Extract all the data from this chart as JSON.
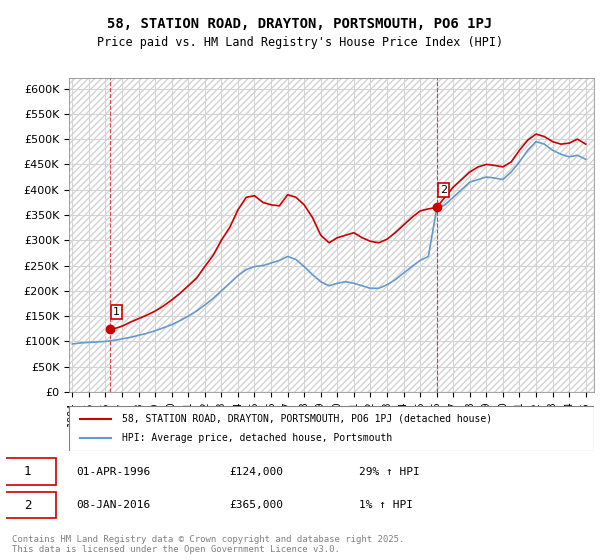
{
  "title": "58, STATION ROAD, DRAYTON, PORTSMOUTH, PO6 1PJ",
  "subtitle": "Price paid vs. HM Land Registry's House Price Index (HPI)",
  "legend_entry1": "58, STATION ROAD, DRAYTON, PORTSMOUTH, PO6 1PJ (detached house)",
  "legend_entry2": "HPI: Average price, detached house, Portsmouth",
  "annotation1_label": "1",
  "annotation1_date": "01-APR-1996",
  "annotation1_price": "£124,000",
  "annotation1_hpi": "29% ↑ HPI",
  "annotation2_label": "2",
  "annotation2_date": "08-JAN-2016",
  "annotation2_price": "£365,000",
  "annotation2_hpi": "1% ↑ HPI",
  "footnote": "Contains HM Land Registry data © Crown copyright and database right 2025.\nThis data is licensed under the Open Government Licence v3.0.",
  "red_color": "#cc0000",
  "blue_color": "#6699cc",
  "marker_box_color": "#cc0000",
  "ylim": [
    0,
    620000
  ],
  "yticks": [
    0,
    50000,
    100000,
    150000,
    200000,
    250000,
    300000,
    350000,
    400000,
    450000,
    500000,
    550000,
    600000
  ],
  "ytick_labels": [
    "£0",
    "£50K",
    "£100K",
    "£150K",
    "£200K",
    "£250K",
    "£300K",
    "£350K",
    "£400K",
    "£450K",
    "£500K",
    "£550K",
    "£600K"
  ],
  "red_years": [
    1996.25,
    1996.5,
    1997,
    1997.5,
    1998,
    1998.5,
    1999,
    1999.5,
    2000,
    2000.5,
    2001,
    2001.5,
    2002,
    2002.5,
    2003,
    2003.5,
    2004,
    2004.5,
    2005,
    2005.5,
    2006,
    2006.5,
    2007,
    2007.5,
    2008,
    2008.5,
    2009,
    2009.5,
    2010,
    2010.5,
    2011,
    2011.5,
    2012,
    2012.5,
    2013,
    2013.5,
    2014,
    2014.5,
    2015,
    2015.5,
    2016.0,
    2016.5,
    2017,
    2017.5,
    2018,
    2018.5,
    2019,
    2019.5,
    2020,
    2020.5,
    2021,
    2021.5,
    2022,
    2022.5,
    2023,
    2023.5,
    2024,
    2024.5,
    2025
  ],
  "red_values": [
    124000,
    125000,
    130000,
    138000,
    145000,
    152000,
    160000,
    170000,
    182000,
    195000,
    210000,
    225000,
    248000,
    270000,
    300000,
    325000,
    360000,
    385000,
    388000,
    375000,
    370000,
    368000,
    390000,
    385000,
    370000,
    345000,
    310000,
    295000,
    305000,
    310000,
    315000,
    305000,
    298000,
    295000,
    302000,
    315000,
    330000,
    345000,
    358000,
    362000,
    365000,
    385000,
    405000,
    420000,
    435000,
    445000,
    450000,
    448000,
    445000,
    455000,
    478000,
    498000,
    510000,
    505000,
    495000,
    490000,
    492000,
    500000,
    490000
  ],
  "blue_years": [
    1994,
    1994.5,
    1995,
    1995.5,
    1996,
    1996.5,
    1997,
    1997.5,
    1998,
    1998.5,
    1999,
    1999.5,
    2000,
    2000.5,
    2001,
    2001.5,
    2002,
    2002.5,
    2003,
    2003.5,
    2004,
    2004.5,
    2005,
    2005.5,
    2006,
    2006.5,
    2007,
    2007.5,
    2008,
    2008.5,
    2009,
    2009.5,
    2010,
    2010.5,
    2011,
    2011.5,
    2012,
    2012.5,
    2013,
    2013.5,
    2014,
    2014.5,
    2015,
    2015.5,
    2016,
    2016.5,
    2017,
    2017.5,
    2018,
    2018.5,
    2019,
    2019.5,
    2020,
    2020.5,
    2021,
    2021.5,
    2022,
    2022.5,
    2023,
    2023.5,
    2024,
    2024.5,
    2025
  ],
  "blue_values": [
    95000,
    97000,
    98000,
    99000,
    100000,
    102000,
    105000,
    108000,
    112000,
    116000,
    121000,
    127000,
    133000,
    141000,
    150000,
    160000,
    172000,
    185000,
    200000,
    215000,
    230000,
    242000,
    248000,
    250000,
    255000,
    260000,
    268000,
    262000,
    248000,
    232000,
    218000,
    210000,
    215000,
    218000,
    215000,
    210000,
    205000,
    205000,
    212000,
    222000,
    235000,
    248000,
    260000,
    268000,
    362000,
    370000,
    385000,
    400000,
    415000,
    420000,
    425000,
    423000,
    420000,
    435000,
    455000,
    478000,
    495000,
    490000,
    478000,
    470000,
    465000,
    468000,
    460000
  ],
  "point1_x": 1996.25,
  "point1_y": 124000,
  "point2_x": 2016.0,
  "point2_y": 365000,
  "vline1_x": 1996.25,
  "vline2_x": 2016.0,
  "xmin": 1993.8,
  "xmax": 2025.5
}
